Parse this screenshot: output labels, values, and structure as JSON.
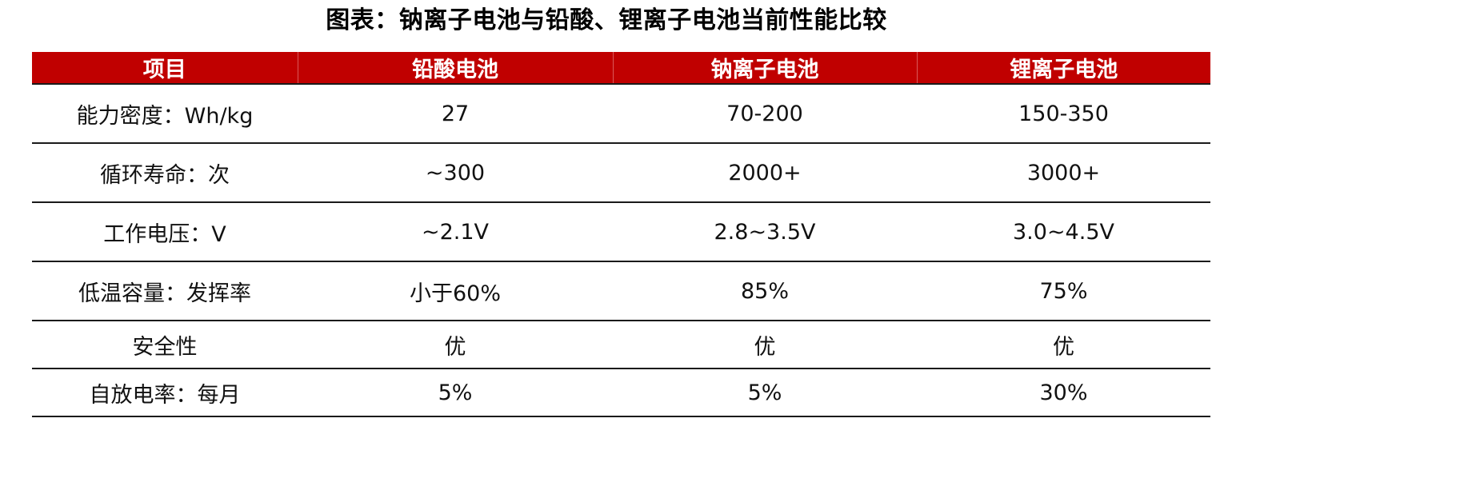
{
  "title": "图表：钠离子电池与铅酸、锂离子电池当前性能比较",
  "accent_color": "#c00000",
  "table": {
    "headers": [
      "项目",
      "铅酸电池",
      "钠离子电池",
      "锂离子电池"
    ],
    "rows": [
      [
        "能力密度：Wh/kg",
        "27",
        "70-200",
        "150-350"
      ],
      [
        "循环寿命：次",
        "~300",
        "2000+",
        "3000+"
      ],
      [
        "工作电压：V",
        "~2.1V",
        "2.8~3.5V",
        "3.0~4.5V"
      ],
      [
        "低温容量：发挥率",
        "小于60%",
        "85%",
        "75%"
      ],
      [
        "安全性",
        "优",
        "优",
        "优"
      ],
      [
        "自放电率：每月",
        "5%",
        "5%",
        "30%"
      ]
    ]
  }
}
